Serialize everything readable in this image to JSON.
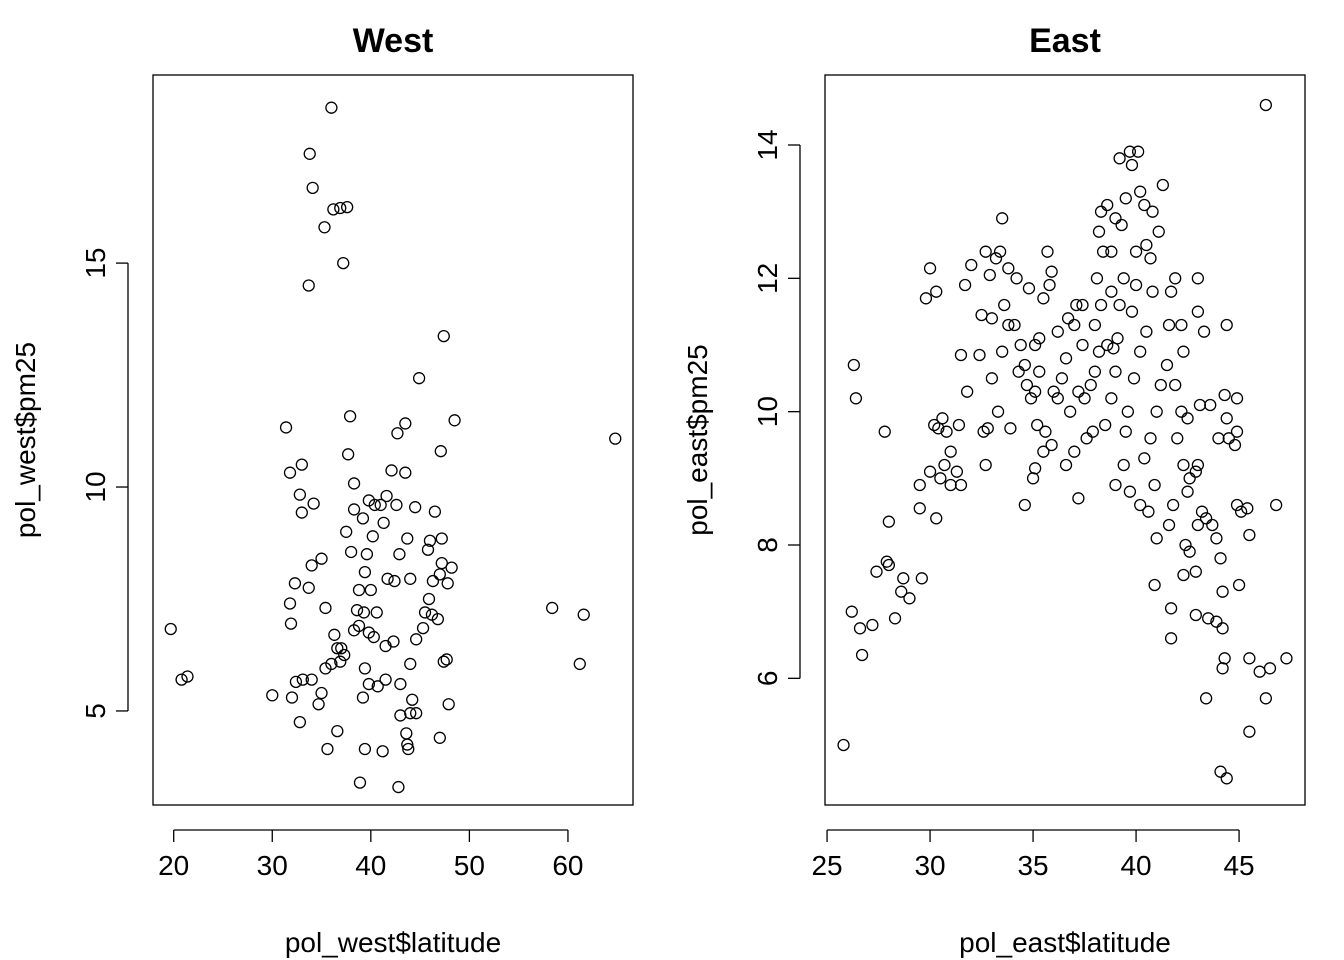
{
  "chart_data": [
    {
      "type": "scatter",
      "title": "West",
      "xlabel": "pol_west$latitude",
      "ylabel": "pol_west$pm25",
      "xticks": [
        20,
        30,
        40,
        50,
        60
      ],
      "yticks": [
        5,
        10,
        15
      ],
      "xlim": [
        17.9,
        66.6
      ],
      "ylim": [
        2.9,
        19.2
      ],
      "points": [
        [
          19.7,
          6.83
        ],
        [
          20.8,
          5.7
        ],
        [
          21.4,
          5.77
        ],
        [
          36.0,
          18.47
        ],
        [
          33.8,
          17.44
        ],
        [
          34.1,
          16.68
        ],
        [
          36.2,
          16.2
        ],
        [
          36.9,
          16.23
        ],
        [
          37.6,
          16.25
        ],
        [
          35.3,
          15.8
        ],
        [
          37.2,
          15.0
        ],
        [
          33.7,
          14.5
        ],
        [
          47.4,
          13.37
        ],
        [
          44.9,
          12.43
        ],
        [
          37.9,
          11.58
        ],
        [
          43.5,
          11.42
        ],
        [
          42.7,
          11.2
        ],
        [
          48.5,
          11.49
        ],
        [
          31.4,
          11.33
        ],
        [
          64.8,
          11.08
        ],
        [
          47.1,
          10.8
        ],
        [
          37.7,
          10.73
        ],
        [
          33.0,
          10.5
        ],
        [
          31.8,
          10.32
        ],
        [
          42.1,
          10.37
        ],
        [
          43.5,
          10.32
        ],
        [
          38.3,
          10.08
        ],
        [
          32.8,
          9.83
        ],
        [
          34.2,
          9.63
        ],
        [
          33.0,
          9.43
        ],
        [
          37.5,
          9.0
        ],
        [
          38.3,
          9.5
        ],
        [
          39.2,
          9.3
        ],
        [
          39.8,
          9.7
        ],
        [
          40.4,
          9.6
        ],
        [
          41.0,
          9.6
        ],
        [
          41.6,
          9.8
        ],
        [
          42.6,
          9.6
        ],
        [
          44.5,
          9.55
        ],
        [
          46.5,
          9.45
        ],
        [
          40.2,
          8.9
        ],
        [
          41.3,
          9.2
        ],
        [
          38.0,
          8.55
        ],
        [
          39.6,
          8.5
        ],
        [
          43.7,
          8.85
        ],
        [
          46.0,
          8.8
        ],
        [
          47.2,
          8.85
        ],
        [
          42.9,
          8.5
        ],
        [
          45.8,
          8.6
        ],
        [
          35.0,
          8.4
        ],
        [
          34.0,
          8.25
        ],
        [
          32.3,
          7.85
        ],
        [
          33.7,
          7.75
        ],
        [
          31.8,
          7.4
        ],
        [
          35.4,
          7.3
        ],
        [
          38.8,
          7.7
        ],
        [
          39.4,
          8.1
        ],
        [
          40.0,
          7.7
        ],
        [
          41.7,
          7.95
        ],
        [
          42.4,
          7.9
        ],
        [
          44.0,
          7.95
        ],
        [
          46.3,
          7.9
        ],
        [
          47.2,
          8.3
        ],
        [
          47.8,
          7.85
        ],
        [
          48.2,
          8.2
        ],
        [
          47.0,
          8.05
        ],
        [
          45.9,
          7.5
        ],
        [
          45.5,
          7.2
        ],
        [
          46.2,
          7.15
        ],
        [
          46.8,
          7.05
        ],
        [
          45.3,
          6.85
        ],
        [
          44.6,
          6.6
        ],
        [
          38.6,
          7.25
        ],
        [
          39.3,
          7.2
        ],
        [
          40.6,
          7.2
        ],
        [
          38.8,
          6.9
        ],
        [
          38.3,
          6.8
        ],
        [
          39.8,
          6.75
        ],
        [
          40.3,
          6.65
        ],
        [
          41.5,
          6.45
        ],
        [
          42.3,
          6.55
        ],
        [
          36.3,
          6.7
        ],
        [
          36.6,
          6.4
        ],
        [
          37.0,
          6.4
        ],
        [
          37.3,
          6.25
        ],
        [
          36.9,
          6.1
        ],
        [
          36.0,
          6.05
        ],
        [
          35.4,
          5.95
        ],
        [
          31.9,
          6.95
        ],
        [
          33.1,
          5.7
        ],
        [
          32.4,
          5.65
        ],
        [
          34.0,
          5.7
        ],
        [
          35.0,
          5.4
        ],
        [
          34.7,
          5.15
        ],
        [
          32.0,
          5.3
        ],
        [
          30.0,
          5.35
        ],
        [
          39.4,
          5.95
        ],
        [
          39.8,
          5.6
        ],
        [
          40.7,
          5.55
        ],
        [
          41.5,
          5.7
        ],
        [
          43.0,
          5.6
        ],
        [
          44.2,
          5.25
        ],
        [
          43.0,
          4.9
        ],
        [
          44.0,
          4.95
        ],
        [
          44.6,
          4.95
        ],
        [
          43.6,
          4.5
        ],
        [
          43.7,
          4.25
        ],
        [
          43.8,
          4.15
        ],
        [
          47.9,
          5.15
        ],
        [
          47.0,
          4.4
        ],
        [
          47.4,
          6.1
        ],
        [
          47.7,
          6.15
        ],
        [
          44.0,
          6.05
        ],
        [
          39.2,
          5.3
        ],
        [
          36.6,
          4.55
        ],
        [
          35.6,
          4.15
        ],
        [
          39.4,
          4.15
        ],
        [
          41.2,
          4.1
        ],
        [
          38.9,
          3.4
        ],
        [
          42.8,
          3.3
        ],
        [
          32.8,
          4.75
        ],
        [
          58.4,
          7.3
        ],
        [
          61.6,
          7.15
        ],
        [
          61.2,
          6.05
        ]
      ]
    },
    {
      "type": "scatter",
      "title": "East",
      "xlabel": "pol_east$latitude",
      "ylabel": "pol_east$pm25",
      "xticks": [
        25,
        30,
        35,
        40,
        45
      ],
      "yticks": [
        6,
        8,
        10,
        12,
        14
      ],
      "xlim": [
        24.9,
        48.2
      ],
      "ylim": [
        4.1,
        15.05
      ],
      "points": [
        [
          25.8,
          5.0
        ],
        [
          26.2,
          7.0
        ],
        [
          26.3,
          10.7
        ],
        [
          26.4,
          10.2
        ],
        [
          26.6,
          6.75
        ],
        [
          26.7,
          6.35
        ],
        [
          27.2,
          6.8
        ],
        [
          27.4,
          7.6
        ],
        [
          27.8,
          9.7
        ],
        [
          27.9,
          7.75
        ],
        [
          28.0,
          7.7
        ],
        [
          28.0,
          8.35
        ],
        [
          28.3,
          6.9
        ],
        [
          28.6,
          7.3
        ],
        [
          28.7,
          7.5
        ],
        [
          29.0,
          7.2
        ],
        [
          29.6,
          7.5
        ],
        [
          29.5,
          8.9
        ],
        [
          29.5,
          8.55
        ],
        [
          29.8,
          11.7
        ],
        [
          30.0,
          12.15
        ],
        [
          30.3,
          11.8
        ],
        [
          30.0,
          9.1
        ],
        [
          30.3,
          8.4
        ],
        [
          30.5,
          9.0
        ],
        [
          30.7,
          9.2
        ],
        [
          31.0,
          8.9
        ],
        [
          31.3,
          9.1
        ],
        [
          31.5,
          8.9
        ],
        [
          30.2,
          9.8
        ],
        [
          30.4,
          9.75
        ],
        [
          30.6,
          9.9
        ],
        [
          30.8,
          9.7
        ],
        [
          31.0,
          9.4
        ],
        [
          31.4,
          9.8
        ],
        [
          31.8,
          10.3
        ],
        [
          31.5,
          10.85
        ],
        [
          31.7,
          11.9
        ],
        [
          32.0,
          12.2
        ],
        [
          32.4,
          10.85
        ],
        [
          32.5,
          11.45
        ],
        [
          32.7,
          12.4
        ],
        [
          32.9,
          12.05
        ],
        [
          33.2,
          12.3
        ],
        [
          33.4,
          12.4
        ],
        [
          33.0,
          11.4
        ],
        [
          32.8,
          9.75
        ],
        [
          32.6,
          9.7
        ],
        [
          32.7,
          9.2
        ],
        [
          33.3,
          10.0
        ],
        [
          33.0,
          10.5
        ],
        [
          33.5,
          10.9
        ],
        [
          33.8,
          11.3
        ],
        [
          33.6,
          11.6
        ],
        [
          33.8,
          12.15
        ],
        [
          34.2,
          12.0
        ],
        [
          33.5,
          12.9
        ],
        [
          34.1,
          11.3
        ],
        [
          34.4,
          11.0
        ],
        [
          34.6,
          10.7
        ],
        [
          34.7,
          10.4
        ],
        [
          34.9,
          10.2
        ],
        [
          34.8,
          11.85
        ],
        [
          35.1,
          11.0
        ],
        [
          35.3,
          11.1
        ],
        [
          35.5,
          11.7
        ],
        [
          35.7,
          12.4
        ],
        [
          35.8,
          11.9
        ],
        [
          35.9,
          12.1
        ],
        [
          35.3,
          10.6
        ],
        [
          35.1,
          10.3
        ],
        [
          35.2,
          9.8
        ],
        [
          35.6,
          9.7
        ],
        [
          35.9,
          9.5
        ],
        [
          35.5,
          9.4
        ],
        [
          35.0,
          9.0
        ],
        [
          35.1,
          9.15
        ],
        [
          34.6,
          8.6
        ],
        [
          36.2,
          10.2
        ],
        [
          36.4,
          10.5
        ],
        [
          36.6,
          10.8
        ],
        [
          36.2,
          11.2
        ],
        [
          36.7,
          11.4
        ],
        [
          37.0,
          11.3
        ],
        [
          37.1,
          11.6
        ],
        [
          37.4,
          11.6
        ],
        [
          37.2,
          10.3
        ],
        [
          37.5,
          10.2
        ],
        [
          37.8,
          10.4
        ],
        [
          37.0,
          9.4
        ],
        [
          37.6,
          9.6
        ],
        [
          37.2,
          8.7
        ],
        [
          37.9,
          9.7
        ],
        [
          38.0,
          10.6
        ],
        [
          38.2,
          10.9
        ],
        [
          38.0,
          11.3
        ],
        [
          38.3,
          11.6
        ],
        [
          38.1,
          12.0
        ],
        [
          38.4,
          12.4
        ],
        [
          38.2,
          12.7
        ],
        [
          38.3,
          13.0
        ],
        [
          38.6,
          13.1
        ],
        [
          38.8,
          12.4
        ],
        [
          38.6,
          11.0
        ],
        [
          38.8,
          10.2
        ],
        [
          39.0,
          10.6
        ],
        [
          39.1,
          11.1
        ],
        [
          39.2,
          11.6
        ],
        [
          39.4,
          12.0
        ],
        [
          39.0,
          12.9
        ],
        [
          39.3,
          12.8
        ],
        [
          39.5,
          13.2
        ],
        [
          39.2,
          13.8
        ],
        [
          39.7,
          13.9
        ],
        [
          39.8,
          13.7
        ],
        [
          40.1,
          13.9
        ],
        [
          40.2,
          13.3
        ],
        [
          40.4,
          13.1
        ],
        [
          40.8,
          13.0
        ],
        [
          40.5,
          12.5
        ],
        [
          40.0,
          12.4
        ],
        [
          40.7,
          12.3
        ],
        [
          41.1,
          12.7
        ],
        [
          41.3,
          13.4
        ],
        [
          40.8,
          11.8
        ],
        [
          40.5,
          11.2
        ],
        [
          40.2,
          10.9
        ],
        [
          39.9,
          10.5
        ],
        [
          39.6,
          10.0
        ],
        [
          39.5,
          9.7
        ],
        [
          39.4,
          9.2
        ],
        [
          39.0,
          8.9
        ],
        [
          39.7,
          8.8
        ],
        [
          40.2,
          8.6
        ],
        [
          40.6,
          8.5
        ],
        [
          40.9,
          8.9
        ],
        [
          40.4,
          9.3
        ],
        [
          40.7,
          9.6
        ],
        [
          41.0,
          10.0
        ],
        [
          41.2,
          10.4
        ],
        [
          41.5,
          10.7
        ],
        [
          41.6,
          11.3
        ],
        [
          41.7,
          11.8
        ],
        [
          41.9,
          12.0
        ],
        [
          42.2,
          11.3
        ],
        [
          42.3,
          10.9
        ],
        [
          41.9,
          10.4
        ],
        [
          42.2,
          10.0
        ],
        [
          42.5,
          9.9
        ],
        [
          42.0,
          9.6
        ],
        [
          42.3,
          9.2
        ],
        [
          42.6,
          9.0
        ],
        [
          42.9,
          9.1
        ],
        [
          43.0,
          9.2
        ],
        [
          42.5,
          8.8
        ],
        [
          41.8,
          8.6
        ],
        [
          41.6,
          8.3
        ],
        [
          42.4,
          8.0
        ],
        [
          42.6,
          7.9
        ],
        [
          42.9,
          7.6
        ],
        [
          42.3,
          7.55
        ],
        [
          41.0,
          8.1
        ],
        [
          40.9,
          7.4
        ],
        [
          41.7,
          7.05
        ],
        [
          41.7,
          6.6
        ],
        [
          42.9,
          6.95
        ],
        [
          43.0,
          8.3
        ],
        [
          43.2,
          8.5
        ],
        [
          43.4,
          8.4
        ],
        [
          43.7,
          8.3
        ],
        [
          43.9,
          8.1
        ],
        [
          44.1,
          7.8
        ],
        [
          44.4,
          9.9
        ],
        [
          44.0,
          9.6
        ],
        [
          44.5,
          9.6
        ],
        [
          44.8,
          9.5
        ],
        [
          44.9,
          9.7
        ],
        [
          44.9,
          10.2
        ],
        [
          44.3,
          10.25
        ],
        [
          43.6,
          10.1
        ],
        [
          43.1,
          10.1
        ],
        [
          43.3,
          11.2
        ],
        [
          43.0,
          12.0
        ],
        [
          43.0,
          11.5
        ],
        [
          44.4,
          11.3
        ],
        [
          44.9,
          8.6
        ],
        [
          45.1,
          8.5
        ],
        [
          45.4,
          8.55
        ],
        [
          45.0,
          7.4
        ],
        [
          44.2,
          7.3
        ],
        [
          43.5,
          6.9
        ],
        [
          43.9,
          6.85
        ],
        [
          44.2,
          6.75
        ],
        [
          44.3,
          6.3
        ],
        [
          44.2,
          6.15
        ],
        [
          45.5,
          6.3
        ],
        [
          46.0,
          6.1
        ],
        [
          46.5,
          6.15
        ],
        [
          46.3,
          5.7
        ],
        [
          47.3,
          6.3
        ],
        [
          45.5,
          5.2
        ],
        [
          43.4,
          5.7
        ],
        [
          44.1,
          4.6
        ],
        [
          44.4,
          4.5
        ],
        [
          45.5,
          8.15
        ],
        [
          46.8,
          8.6
        ],
        [
          46.3,
          14.6
        ],
        [
          36.8,
          10.0
        ],
        [
          36.0,
          10.3
        ],
        [
          34.3,
          10.6
        ],
        [
          33.9,
          9.75
        ],
        [
          38.8,
          11.8
        ],
        [
          39.8,
          11.5
        ],
        [
          40.0,
          11.9
        ],
        [
          38.5,
          9.8
        ],
        [
          36.6,
          9.2
        ],
        [
          37.4,
          11.0
        ],
        [
          38.9,
          10.95
        ]
      ]
    }
  ]
}
